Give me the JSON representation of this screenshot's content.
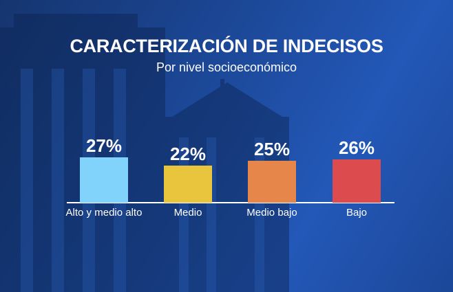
{
  "chart_data": {
    "type": "bar",
    "title": "CARACTERIZACIÓN DE INDECISOS",
    "subtitle": "Por nivel socioeconómico",
    "categories": [
      "Alto y medio alto",
      "Medio",
      "Medio bajo",
      "Bajo"
    ],
    "values": [
      27,
      22,
      25,
      26
    ],
    "value_labels": [
      "27%",
      "22%",
      "25%",
      "26%"
    ],
    "colors": [
      "#82d3fb",
      "#e8c53d",
      "#e6864b",
      "#dc4b4d"
    ]
  }
}
